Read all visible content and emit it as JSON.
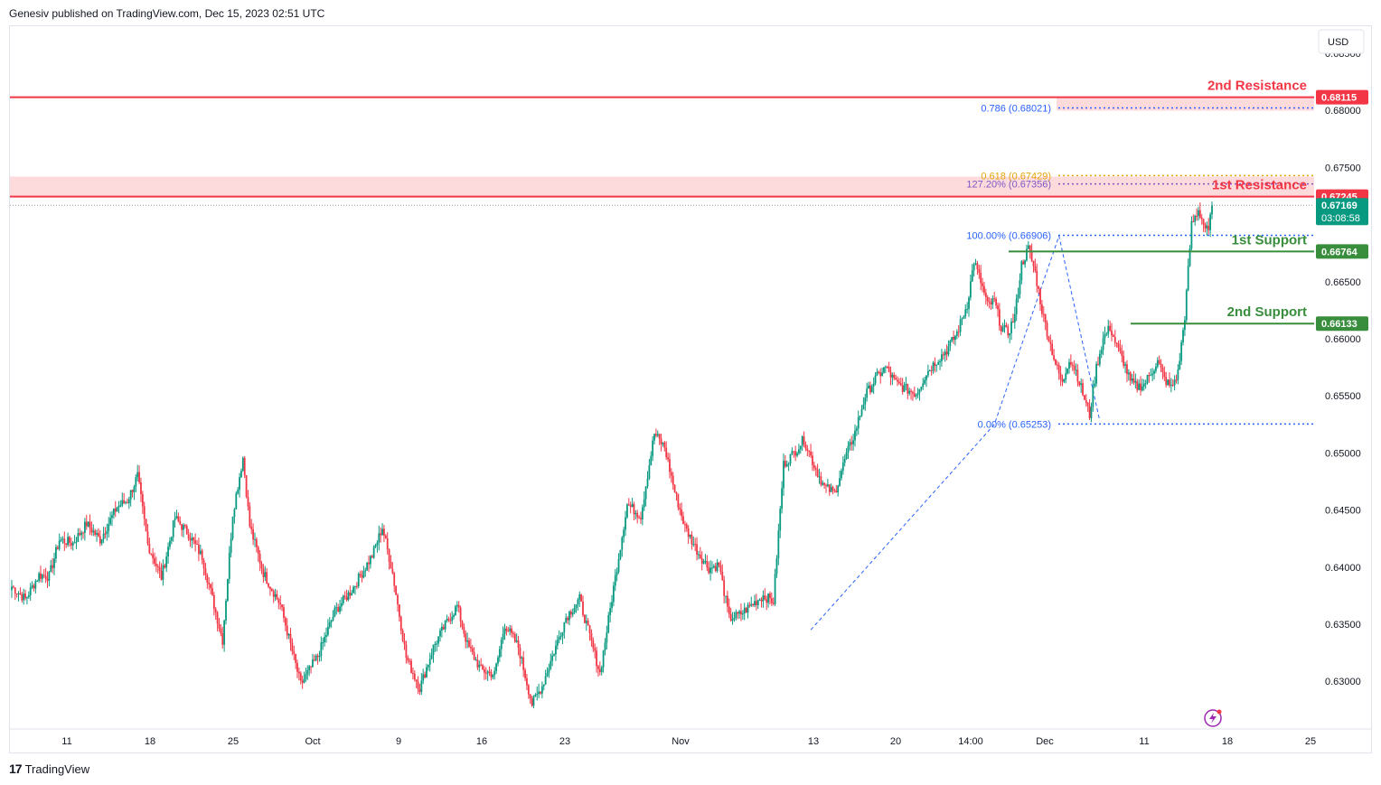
{
  "header": {
    "publisher": "Genesiv published on TradingView.com, Dec 15, 2023 02:51 UTC"
  },
  "footer": {
    "brand": "TradingView",
    "logo_mark": "17"
  },
  "currency_button": "USD",
  "colors": {
    "up": "#089981",
    "down": "#f23645",
    "resistance": "#f23645",
    "support": "#388e3c",
    "fib_blue": "#2962ff",
    "fib_gold": "#e5a50a",
    "fib_purple": "#7e57c2"
  },
  "chart_data": {
    "type": "candlestick",
    "symbol_price_axis": {
      "min": 0.6275,
      "max": 0.6858,
      "ticks": [
        "0.68500",
        "0.68000",
        "0.67500",
        "0.66500",
        "0.66000",
        "0.65500",
        "0.65000",
        "0.64500",
        "0.64000",
        "0.63500",
        "0.63000"
      ]
    },
    "x_ticks": [
      "11",
      "18",
      "25",
      "Oct",
      "9",
      "16",
      "23",
      "Nov",
      "13",
      "20",
      "14:00",
      "Dec",
      "11",
      "18",
      "25"
    ],
    "resistance": [
      {
        "label": "2nd Resistance",
        "price": 0.68115,
        "badge": "0.68115"
      },
      {
        "label": "1st Resistance",
        "price": 0.67245,
        "badge": "0.67245"
      }
    ],
    "support": [
      {
        "label": "1st Support",
        "price": 0.66764,
        "badge": "0.66764"
      },
      {
        "label": "2nd Support",
        "price": 0.66133,
        "badge": "0.66133"
      }
    ],
    "fib_levels": [
      {
        "label": "0.786 (0.68021)",
        "price": 0.68021,
        "color": "blue"
      },
      {
        "label": "0.618 (0.67429)",
        "price": 0.67429,
        "color": "gold"
      },
      {
        "label": "127.20% (0.67356)",
        "price": 0.67356,
        "color": "purple"
      },
      {
        "label": "100.00% (0.66906)",
        "price": 0.66906,
        "color": "blue"
      },
      {
        "label": "0.00% (0.65253)",
        "price": 0.65253,
        "color": "blue"
      }
    ],
    "last_price": {
      "price": 0.67169,
      "label": "0.67169",
      "countdown": "03:08:58"
    },
    "close_series_anchors": [
      [
        0,
        0.6383
      ],
      [
        8,
        0.6372
      ],
      [
        16,
        0.6393
      ],
      [
        22,
        0.6392
      ],
      [
        28,
        0.6424
      ],
      [
        36,
        0.6421
      ],
      [
        44,
        0.6438
      ],
      [
        52,
        0.6424
      ],
      [
        62,
        0.6453
      ],
      [
        68,
        0.6458
      ],
      [
        74,
        0.648
      ],
      [
        80,
        0.642
      ],
      [
        88,
        0.6391
      ],
      [
        96,
        0.6443
      ],
      [
        104,
        0.6429
      ],
      [
        112,
        0.6409
      ],
      [
        124,
        0.6336
      ],
      [
        130,
        0.6447
      ],
      [
        136,
        0.6496
      ],
      [
        140,
        0.6436
      ],
      [
        148,
        0.6395
      ],
      [
        158,
        0.6367
      ],
      [
        170,
        0.6297
      ],
      [
        180,
        0.6322
      ],
      [
        190,
        0.6361
      ],
      [
        200,
        0.638
      ],
      [
        212,
        0.641
      ],
      [
        218,
        0.6435
      ],
      [
        224,
        0.6395
      ],
      [
        232,
        0.6321
      ],
      [
        240,
        0.6294
      ],
      [
        248,
        0.633
      ],
      [
        256,
        0.6352
      ],
      [
        262,
        0.6366
      ],
      [
        268,
        0.6332
      ],
      [
        276,
        0.631
      ],
      [
        284,
        0.6306
      ],
      [
        290,
        0.635
      ],
      [
        298,
        0.633
      ],
      [
        306,
        0.628
      ],
      [
        312,
        0.6296
      ],
      [
        318,
        0.6322
      ],
      [
        326,
        0.6356
      ],
      [
        334,
        0.6372
      ],
      [
        340,
        0.6339
      ],
      [
        346,
        0.6307
      ],
      [
        354,
        0.6382
      ],
      [
        362,
        0.6455
      ],
      [
        370,
        0.6445
      ],
      [
        378,
        0.6517
      ],
      [
        384,
        0.6505
      ],
      [
        390,
        0.6466
      ],
      [
        396,
        0.6435
      ],
      [
        404,
        0.6412
      ],
      [
        410,
        0.6399
      ],
      [
        416,
        0.6402
      ],
      [
        422,
        0.6355
      ],
      [
        428,
        0.6358
      ],
      [
        436,
        0.6368
      ],
      [
        442,
        0.6375
      ],
      [
        448,
        0.637
      ],
      [
        454,
        0.649
      ],
      [
        460,
        0.65
      ],
      [
        466,
        0.6512
      ],
      [
        472,
        0.6489
      ],
      [
        478,
        0.647
      ],
      [
        484,
        0.6465
      ],
      [
        490,
        0.6494
      ],
      [
        496,
        0.6518
      ],
      [
        502,
        0.655
      ],
      [
        508,
        0.6565
      ],
      [
        514,
        0.6575
      ],
      [
        520,
        0.6561
      ],
      [
        526,
        0.6556
      ],
      [
        532,
        0.6552
      ],
      [
        538,
        0.657
      ],
      [
        544,
        0.6581
      ],
      [
        550,
        0.659
      ],
      [
        556,
        0.6605
      ],
      [
        562,
        0.663
      ],
      [
        566,
        0.6668
      ],
      [
        570,
        0.665
      ],
      [
        574,
        0.6629
      ],
      [
        578,
        0.6633
      ],
      [
        582,
        0.661
      ],
      [
        586,
        0.6605
      ],
      [
        590,
        0.662
      ],
      [
        594,
        0.6665
      ],
      [
        598,
        0.6679
      ],
      [
        602,
        0.6658
      ],
      [
        606,
        0.6625
      ],
      [
        610,
        0.66
      ],
      [
        614,
        0.6578
      ],
      [
        618,
        0.656
      ],
      [
        622,
        0.6583
      ],
      [
        626,
        0.6572
      ],
      [
        630,
        0.6552
      ],
      [
        634,
        0.6533
      ],
      [
        638,
        0.6575
      ],
      [
        642,
        0.66
      ],
      [
        646,
        0.661
      ],
      [
        650,
        0.6593
      ],
      [
        654,
        0.658
      ],
      [
        658,
        0.6562
      ],
      [
        662,
        0.6558
      ],
      [
        666,
        0.656
      ],
      [
        670,
        0.657
      ],
      [
        674,
        0.658
      ],
      [
        678,
        0.6565
      ],
      [
        682,
        0.6557
      ],
      [
        686,
        0.657
      ],
      [
        690,
        0.662
      ],
      [
        694,
        0.67
      ],
      [
        698,
        0.6713
      ],
      [
        700,
        0.6705
      ],
      [
        702,
        0.6697
      ],
      [
        704,
        0.6693
      ],
      [
        706,
        0.6717
      ]
    ]
  }
}
